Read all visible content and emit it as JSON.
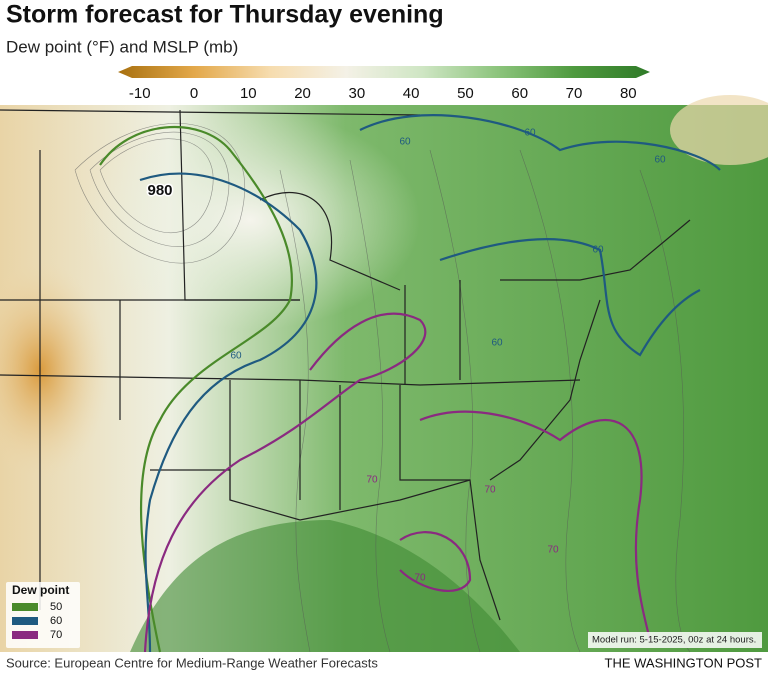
{
  "header": {
    "title": "Storm forecast for Thursday evening",
    "subtitle": "Dew point (°F) and MSLP (mb)"
  },
  "colorbar": {
    "range": [
      -14,
      84
    ],
    "ticks": [
      -10,
      0,
      10,
      20,
      30,
      40,
      50,
      60,
      70,
      80
    ],
    "colors": [
      "#a8700f",
      "#e3a84a",
      "#f6dcae",
      "#f4f1e6",
      "#cfe6c4",
      "#8cc47c",
      "#4f9a3f",
      "#2f7a28"
    ]
  },
  "map": {
    "pressure_label": 980,
    "contour_labels": [
      60,
      60,
      60,
      60,
      60,
      60,
      70,
      70,
      70,
      70
    ]
  },
  "legend": {
    "title": "Dew point",
    "items": [
      {
        "label": 50,
        "color": "#4a8a2a"
      },
      {
        "label": 60,
        "color": "#1f5a80"
      },
      {
        "label": 70,
        "color": "#8a2a80"
      }
    ]
  },
  "note": "Model run: 5-15-2025, 00z at 24 hours.",
  "footer": {
    "source": "Source: European Centre for Medium-Range Weather Forecasts",
    "credit": "THE WASHINGTON POST"
  }
}
